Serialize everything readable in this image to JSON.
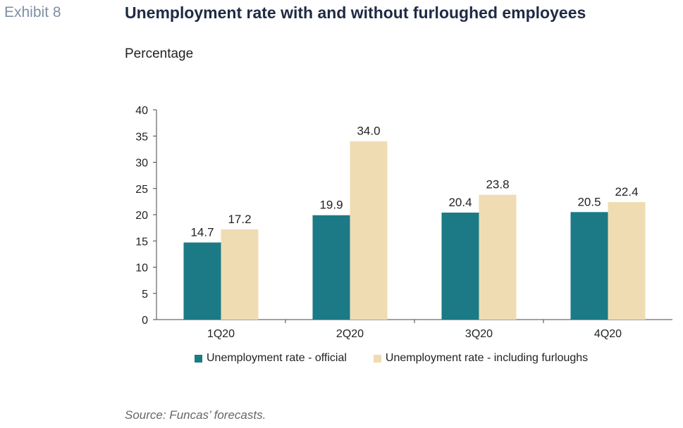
{
  "exhibit_label": "Exhibit 8",
  "chart_data": {
    "type": "bar",
    "title": "Unemployment rate with and without furloughed employees",
    "ylabel": "Percentage",
    "xlabel": "",
    "categories": [
      "1Q20",
      "2Q20",
      "3Q20",
      "4Q20"
    ],
    "ylim": [
      0,
      40
    ],
    "yticks": [
      0,
      5,
      10,
      15,
      20,
      25,
      30,
      35,
      40
    ],
    "grid": false,
    "legend": "bottom",
    "series": [
      {
        "name": "Unemployment rate - official",
        "color": "#1b7a85",
        "values": [
          14.7,
          19.9,
          20.4,
          20.5
        ],
        "labels": [
          "14.7",
          "19.9",
          "20.4",
          "20.5"
        ]
      },
      {
        "name": "Unemployment rate - including furloughs",
        "color": "#f0dcb3",
        "values": [
          17.2,
          34.0,
          23.8,
          22.4
        ],
        "labels": [
          "17.2",
          "34.0",
          "23.8",
          "22.4"
        ]
      }
    ]
  },
  "source": "Source: Funcas’ forecasts."
}
